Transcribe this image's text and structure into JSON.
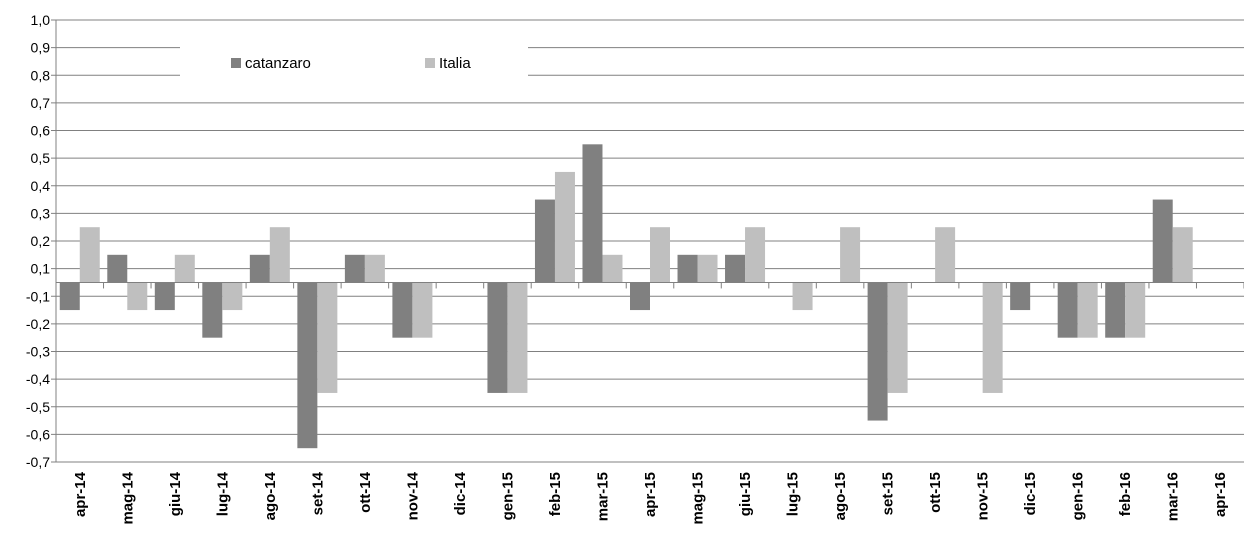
{
  "chart_data": {
    "type": "bar",
    "title": "",
    "xlabel": "",
    "ylabel": "",
    "ylim": [
      -0.7,
      1.0
    ],
    "y_ticks": [
      "1,0",
      "0,9",
      "0,8",
      "0,7",
      "0,6",
      "0,5",
      "0,4",
      "0,3",
      "0,2",
      "0,1",
      "-0,1",
      "-0,2",
      "-0,3",
      "-0,4",
      "-0,5",
      "-0,6",
      "-0,7"
    ],
    "grid": true,
    "legend_position": "top-left",
    "categories": [
      "apr-14",
      "mag-14",
      "giu-14",
      "lug-14",
      "ago-14",
      "set-14",
      "ott-14",
      "nov-14",
      "dic-14",
      "gen-15",
      "feb-15",
      "mar-15",
      "apr-15",
      "mag-15",
      "giu-15",
      "lug-15",
      "ago-15",
      "set-15",
      "ott-15",
      "nov-15",
      "dic-15",
      "gen-16",
      "feb-16",
      "mar-16",
      "apr-16"
    ],
    "series": [
      {
        "name": "catanzaro",
        "color": "#808080",
        "values": [
          -0.1,
          0.1,
          -0.1,
          -0.2,
          0.1,
          -0.6,
          0.1,
          -0.2,
          0.0,
          -0.4,
          0.3,
          0.5,
          -0.1,
          0.1,
          0.1,
          0.0,
          0.0,
          -0.5,
          0.0,
          0.0,
          -0.1,
          -0.2,
          -0.2,
          0.3,
          null
        ]
      },
      {
        "name": "Italia",
        "color": "#bfbfbf",
        "values": [
          0.2,
          -0.1,
          0.1,
          -0.1,
          0.2,
          -0.4,
          0.1,
          -0.2,
          0.0,
          -0.4,
          0.4,
          0.1,
          0.2,
          0.1,
          0.2,
          -0.1,
          0.2,
          -0.4,
          0.2,
          -0.4,
          0.0,
          -0.2,
          -0.2,
          0.2,
          null
        ]
      }
    ]
  }
}
